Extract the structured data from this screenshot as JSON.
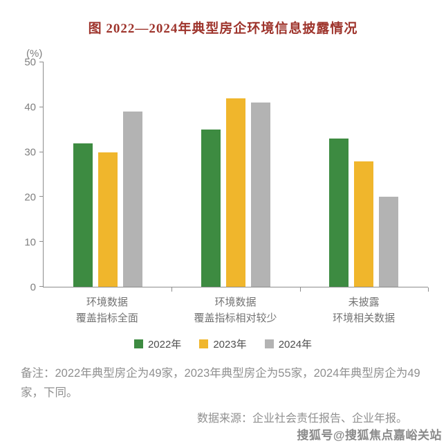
{
  "page": {
    "title": "图  2022—2024年典型房企环境信息披露情况"
  },
  "chart_data": {
    "type": "bar",
    "title": "图 2022—2024年典型房企环境信息披露情况",
    "unit_label": "(%)",
    "categories": [
      "环境数据\n覆盖指标全面",
      "环境数据\n覆盖指标相对较少",
      "未披露\n环境相关数据"
    ],
    "series": [
      {
        "name": "2022年",
        "color": "#3d8b41",
        "values": [
          32,
          35,
          33
        ]
      },
      {
        "name": "2023年",
        "color": "#f0b62c",
        "values": [
          30,
          42,
          28
        ]
      },
      {
        "name": "2024年",
        "color": "#b3b3b3",
        "values": [
          39,
          41,
          20
        ]
      }
    ],
    "ylim": [
      0,
      50
    ],
    "yticks": [
      0,
      10,
      20,
      30,
      40,
      50
    ],
    "grid": false,
    "legend_position": "bottom",
    "axis_color": "#8c8c8c"
  },
  "notes": {
    "remark": "备注：2022年典型房企为49家，2023年典型房企为55家，2024年典型房企为49家，下同。",
    "source": "数据来源：企业社会责任报告、企业年报。"
  },
  "watermark": "搜狐号@搜狐焦点嘉峪关站"
}
